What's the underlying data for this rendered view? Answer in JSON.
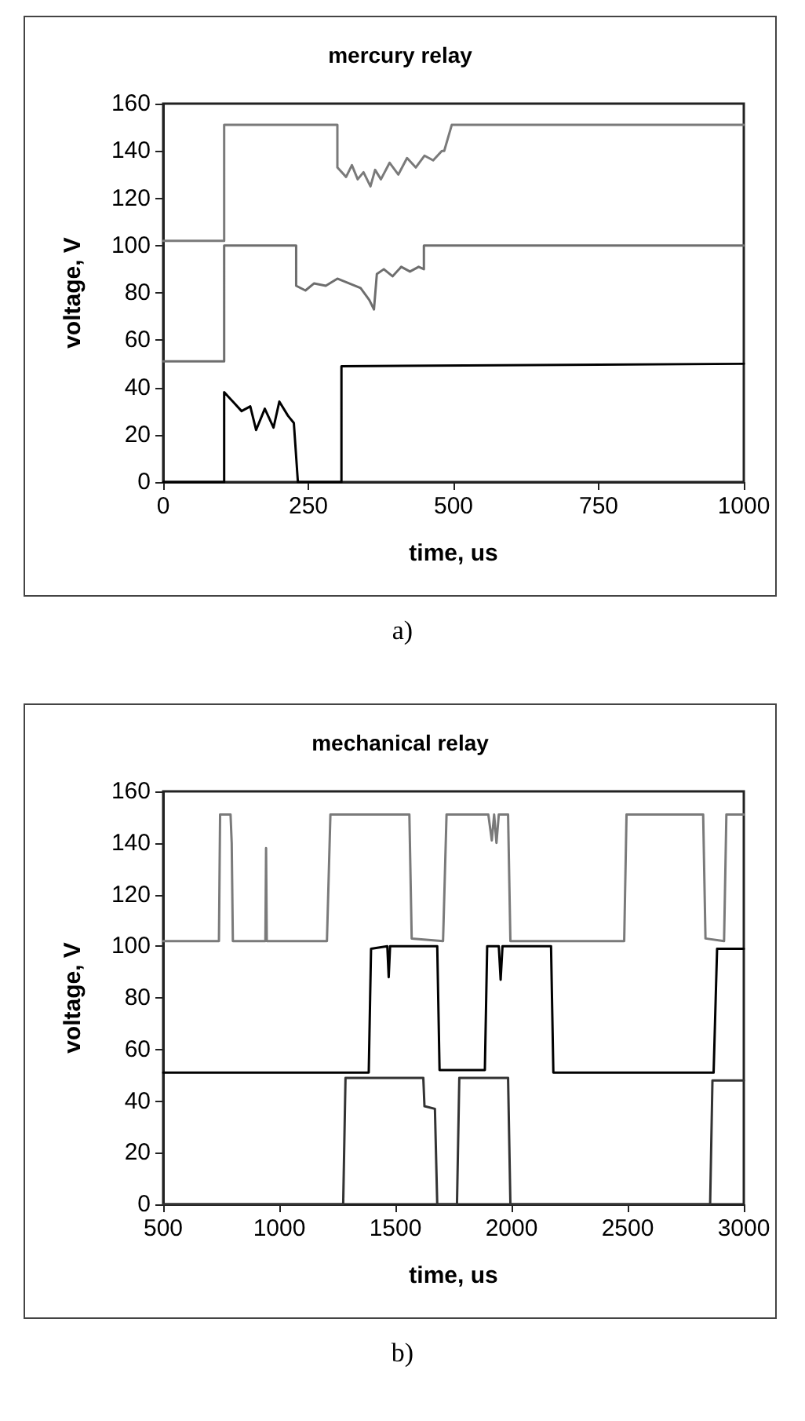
{
  "chart_data": [
    {
      "type": "line",
      "title": "mercury relay",
      "xlabel": "time, us",
      "ylabel": "voltage, V",
      "xlim": [
        0,
        1000
      ],
      "xticks": [
        0,
        250,
        500,
        750,
        1000
      ],
      "ylim": [
        0,
        160
      ],
      "yticks": [
        0,
        20,
        40,
        60,
        80,
        100,
        120,
        140,
        160
      ],
      "grid": false,
      "marker": "none",
      "line_style": "solid",
      "annotations": [
        "a)"
      ],
      "series": [
        {
          "color": "#7a7a7a",
          "x": [
            0,
            105,
            105,
            300,
            300,
            315,
            325,
            335,
            345,
            357,
            365,
            375,
            390,
            405,
            420,
            435,
            450,
            465,
            480,
            484,
            497,
            1000
          ],
          "values": [
            102,
            102,
            151,
            151,
            133,
            129,
            134,
            128,
            131,
            125,
            132,
            128,
            135,
            130,
            137,
            133,
            138,
            136,
            140,
            140,
            151,
            151
          ]
        },
        {
          "color": "#6e6e6e",
          "x": [
            0,
            105,
            105,
            229,
            229,
            245,
            260,
            280,
            300,
            320,
            340,
            355,
            363,
            368,
            380,
            395,
            410,
            425,
            440,
            449,
            449,
            1000
          ],
          "values": [
            51,
            51,
            100,
            100,
            83,
            81,
            84,
            83,
            86,
            84,
            82,
            77,
            73,
            88,
            90,
            87,
            91,
            89,
            91,
            90,
            100,
            100
          ]
        },
        {
          "color": "#000000",
          "x": [
            0,
            105,
            105,
            120,
            135,
            150,
            160,
            175,
            190,
            200,
            215,
            225,
            232,
            307,
            307,
            1000
          ],
          "values": [
            0,
            0,
            38,
            34,
            30,
            32,
            22,
            31,
            23,
            34,
            28,
            25,
            0,
            0,
            49,
            50
          ]
        }
      ]
    },
    {
      "type": "line",
      "title": "mechanical relay",
      "xlabel": "time, us",
      "ylabel": "voltage, V",
      "xlim": [
        500,
        3000
      ],
      "xticks": [
        500,
        1000,
        1500,
        2000,
        2500,
        3000
      ],
      "ylim": [
        0,
        160
      ],
      "yticks": [
        0,
        20,
        40,
        60,
        80,
        100,
        120,
        140,
        160
      ],
      "grid": false,
      "marker": "none",
      "line_style": "solid",
      "annotations": [
        "b)"
      ],
      "series": [
        {
          "color": "#7a7a7a",
          "x": [
            500,
            740,
            745,
            790,
            795,
            800,
            940,
            943,
            946,
            1205,
            1220,
            1560,
            1570,
            1705,
            1720,
            1900,
            1915,
            1925,
            1935,
            1945,
            1985,
            1995,
            2485,
            2495,
            2825,
            2835,
            2915,
            2925,
            3000
          ],
          "values": [
            102,
            102,
            151,
            151,
            140,
            102,
            102,
            138,
            102,
            102,
            151,
            151,
            103,
            102,
            151,
            151,
            141,
            151,
            140,
            151,
            151,
            102,
            102,
            151,
            151,
            103,
            102,
            151,
            151
          ]
        },
        {
          "color": "#000000",
          "x": [
            500,
            1385,
            1395,
            1465,
            1471,
            1477,
            1680,
            1690,
            1885,
            1895,
            1945,
            1953,
            1961,
            2170,
            2180,
            2870,
            2885,
            3000
          ],
          "values": [
            51,
            51,
            99,
            100,
            88,
            100,
            100,
            52,
            52,
            100,
            100,
            87,
            100,
            100,
            51,
            51,
            99,
            99
          ]
        },
        {
          "color": "#333333",
          "x": [
            500,
            1275,
            1285,
            1620,
            1625,
            1670,
            1680,
            1765,
            1775,
            1985,
            1995,
            2855,
            2865,
            3000
          ],
          "values": [
            0,
            0,
            49,
            49,
            38,
            37,
            0,
            0,
            49,
            49,
            0,
            0,
            48,
            48
          ]
        }
      ]
    }
  ]
}
